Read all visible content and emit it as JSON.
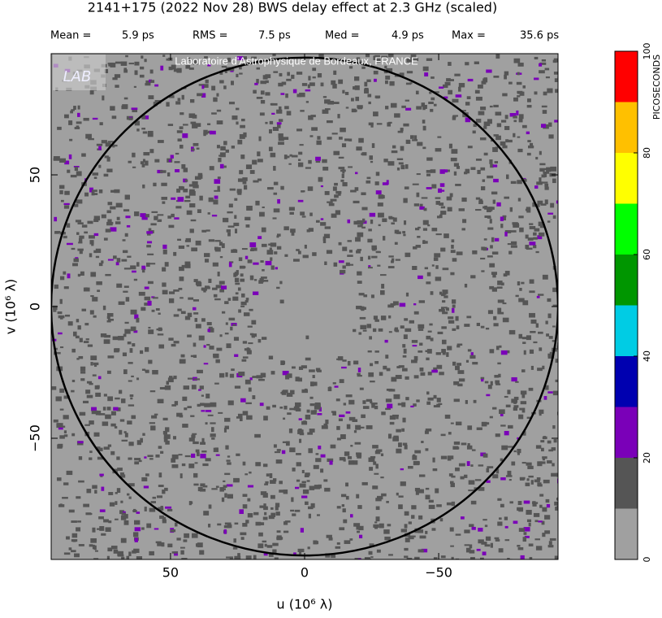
{
  "chart_data": {
    "type": "uvmap",
    "title": "2141+175  (2022 Nov 28)   BWS delay effect at  2.3 GHz (scaled)",
    "stats": [
      {
        "name": "Mean =",
        "value": "5.9 ps"
      },
      {
        "name": "RMS =",
        "value": "7.5 ps"
      },
      {
        "name": "Med =",
        "value": "4.9 ps"
      },
      {
        "name": "Max =",
        "value": "35.6 ps"
      }
    ],
    "watermark": "Laboratoire d'Astrophysique de Bordeaux, FRANCE",
    "logo": "LAB",
    "xlabel": "u  (10⁶ λ)",
    "ylabel": "v  (10⁶ λ)",
    "xlim": [
      94.5,
      -94.5
    ],
    "ylim": [
      -96,
      96
    ],
    "xticks": [
      50,
      0,
      {
        "value": -50,
        "label": "−50"
      }
    ],
    "yticks": [
      {
        "value": -50,
        "label": "−50"
      },
      0,
      50
    ],
    "circle_radius": 94.5,
    "background_color": "#a0a0a0",
    "colorbar": {
      "label": "PICOSECONDS",
      "levels": [
        0,
        10,
        20,
        30,
        40,
        50,
        60,
        70,
        80,
        90,
        100
      ],
      "colors": [
        "#a0a0a0",
        "#555555",
        "#7a00b8",
        "#0000b0",
        "#00cce4",
        "#009600",
        "#00ff00",
        "#ffff00",
        "#ffc000",
        "#ff0000"
      ],
      "ticks": [
        0,
        20,
        40,
        60,
        80,
        100
      ]
    }
  }
}
